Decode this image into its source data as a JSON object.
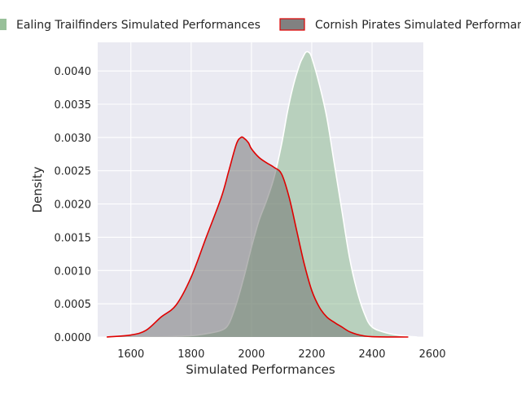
{
  "chart_data": {
    "type": "area",
    "xlabel": "Simulated Performances",
    "ylabel": "Density",
    "xlim": [
      1490,
      2570
    ],
    "ylim": [
      0,
      0.00443
    ],
    "x_ticks": [
      1600,
      1800,
      2000,
      2200,
      2400,
      2600
    ],
    "x_tick_labels": [
      "1600",
      "1800",
      "2000",
      "2200",
      "2400",
      "2600"
    ],
    "y_ticks": [
      0.0,
      0.0005,
      0.001,
      0.0015,
      0.002,
      0.0025,
      0.003,
      0.0035,
      0.004
    ],
    "y_tick_labels": [
      "0.0000",
      "0.0005",
      "0.0010",
      "0.0015",
      "0.0020",
      "0.0025",
      "0.0030",
      "0.0035",
      "0.0040"
    ],
    "grid": true,
    "legend_position": "top",
    "series": [
      {
        "name": "Ealing Trailfinders Simulated Performances",
        "fill_color": "#86b587",
        "line_color": "#ffffff",
        "x": [
          1580,
          1700,
          1800,
          1850,
          1900,
          1925,
          1950,
          1975,
          2000,
          2025,
          2050,
          2075,
          2100,
          2120,
          2140,
          2160,
          2170,
          2180,
          2190,
          2200,
          2225,
          2250,
          2275,
          2300,
          2325,
          2350,
          2375,
          2400,
          2450,
          2500,
          2550
        ],
        "y": [
          0.0,
          3e-06,
          2e-05,
          5e-05,
          0.0001,
          0.0002,
          0.0005,
          0.0009,
          0.00135,
          0.00175,
          0.00205,
          0.0024,
          0.0029,
          0.0034,
          0.0038,
          0.0041,
          0.0042,
          0.00428,
          0.00428,
          0.0042,
          0.0038,
          0.0033,
          0.0026,
          0.0019,
          0.0012,
          0.0007,
          0.00035,
          0.00015,
          6e-05,
          2e-05,
          0.0
        ]
      },
      {
        "name": "Cornish Pirates Simulated Performances",
        "fill_color": "#6b6b6b",
        "line_color": "#e00000",
        "x": [
          1520,
          1600,
          1650,
          1700,
          1750,
          1800,
          1850,
          1900,
          1925,
          1950,
          1965,
          1975,
          1990,
          2000,
          2025,
          2050,
          2075,
          2100,
          2125,
          2150,
          2175,
          2200,
          2225,
          2250,
          2275,
          2300,
          2325,
          2350,
          2375,
          2400,
          2450,
          2520
        ],
        "y": [
          0.0,
          3e-05,
          0.0001,
          0.0003,
          0.00048,
          0.0009,
          0.0015,
          0.0021,
          0.0025,
          0.0029,
          0.003,
          0.00299,
          0.00292,
          0.00283,
          0.0027,
          0.00262,
          0.00255,
          0.00245,
          0.0021,
          0.0016,
          0.0011,
          0.0007,
          0.00045,
          0.0003,
          0.00022,
          0.00015,
          8e-05,
          4e-05,
          1.5e-05,
          5e-06,
          1e-06,
          0.0
        ]
      }
    ]
  }
}
